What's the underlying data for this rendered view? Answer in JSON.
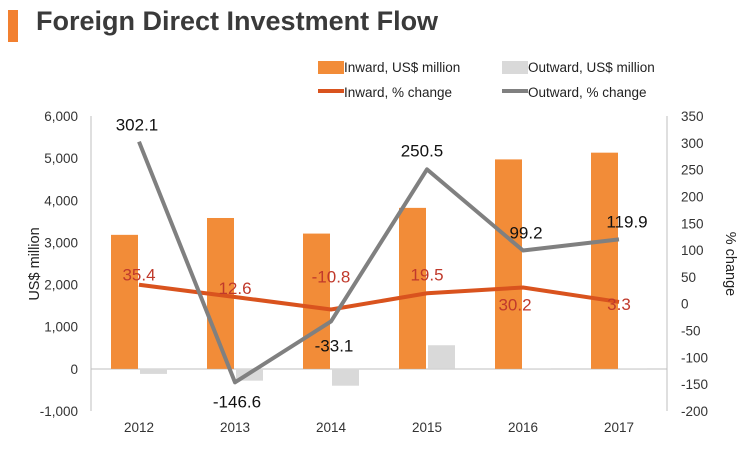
{
  "header": {
    "title": "Foreign Direct Investment Flow"
  },
  "colors": {
    "accent": "#F28030",
    "inward_bar": "#F28C38",
    "outward_bar": "#D9D9D9",
    "inward_line": "#D9531E",
    "outward_line": "#808080",
    "inward_label": "#C0392B",
    "outward_label": "#111111",
    "axis": "#BFBFBF"
  },
  "chart_data": {
    "type": "bar+line",
    "title": "Foreign Direct Investment Flow",
    "categories": [
      "2012",
      "2013",
      "2014",
      "2015",
      "2016",
      "2017"
    ],
    "ylabel": "US$ million",
    "y2label": "% change",
    "ylim": [
      -1000,
      6000
    ],
    "y_ticks": [
      "-1,000",
      "0",
      "1,000",
      "2,000",
      "3,000",
      "4,000",
      "5,000",
      "6,000"
    ],
    "y_tick_values": [
      -1000,
      0,
      1000,
      2000,
      3000,
      4000,
      5000,
      6000
    ],
    "y2lim": [
      -200,
      350
    ],
    "y2_ticks": [
      "-200",
      "-150",
      "-100",
      "-50",
      "0",
      "50",
      "100",
      "150",
      "200",
      "250",
      "300",
      "350"
    ],
    "y2_tick_values": [
      -200,
      -150,
      -100,
      -50,
      0,
      50,
      100,
      150,
      200,
      250,
      300,
      350
    ],
    "legend_position": "top",
    "series": [
      {
        "name": "Inward, US$ million",
        "kind": "bar",
        "axis": "left",
        "values": [
          3180,
          3580,
          3210,
          3820,
          4970,
          5130
        ]
      },
      {
        "name": "Outward, US$ million",
        "kind": "bar",
        "axis": "left",
        "values": [
          -120,
          -280,
          -400,
          560,
          -20,
          -20
        ]
      },
      {
        "name": "Inward, % change",
        "kind": "line",
        "axis": "right",
        "values": [
          35.4,
          12.6,
          -10.8,
          19.5,
          30.2,
          3.3
        ],
        "labels": [
          "35.4",
          "12.6",
          "-10.8",
          "19.5",
          "30.2",
          "3.3"
        ]
      },
      {
        "name": "Outward, % change",
        "kind": "line",
        "axis": "right",
        "values": [
          302.1,
          -146.6,
          -33.1,
          250.5,
          99.2,
          119.9
        ],
        "labels": [
          "302.1",
          "-146.6",
          "-33.1",
          "250.5",
          "99.2",
          "119.9"
        ]
      }
    ]
  }
}
